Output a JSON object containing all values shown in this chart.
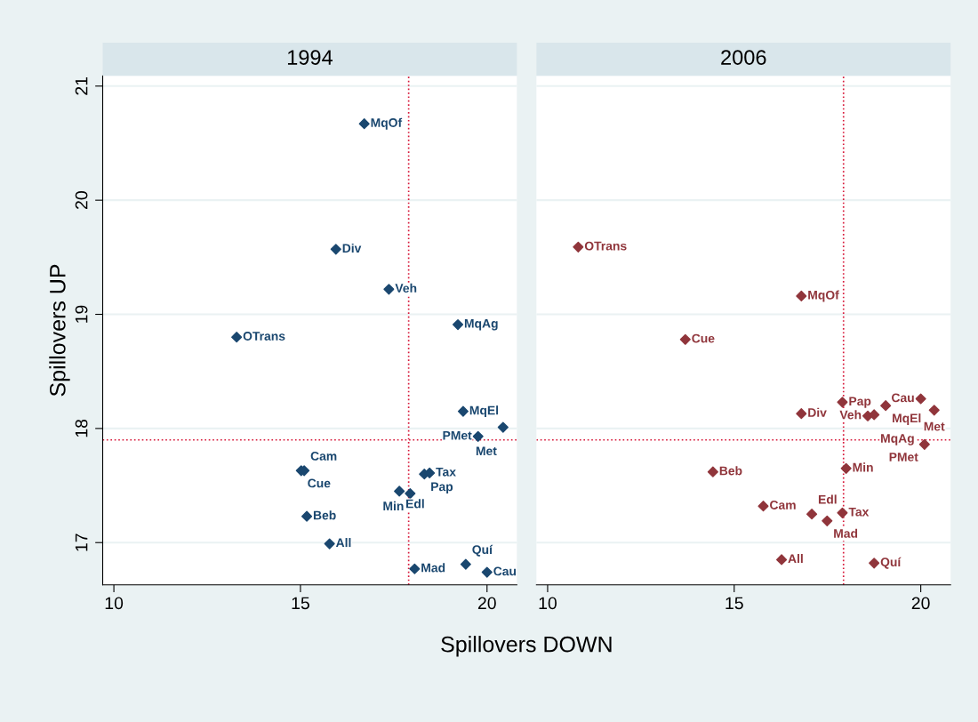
{
  "chart_data": [
    {
      "type": "scatter",
      "title": "1994",
      "xlabel": "Spillovers DOWN",
      "ylabel": "Spillovers UP",
      "xlim": [
        9.7,
        20.8
      ],
      "xticks": [
        10,
        15,
        20
      ],
      "ylim": [
        16.63,
        21.09
      ],
      "yticks": [
        17,
        18,
        19,
        20,
        21
      ],
      "grid": "y",
      "marker": "diamond",
      "series": [
        {
          "color": "#1a476f",
          "x": [
            16.71,
            15.95,
            17.37,
            13.29,
            19.22,
            19.36,
            20.43,
            19.76,
            15.02,
            15.1,
            18.32,
            18.46,
            17.65,
            17.94,
            15.17,
            15.78,
            18.06,
            19.43,
            20.0
          ],
          "values": [
            20.67,
            19.57,
            19.22,
            18.8,
            18.91,
            18.15,
            18.01,
            17.93,
            17.63,
            17.63,
            17.6,
            17.61,
            17.45,
            17.43,
            17.23,
            16.99,
            16.77,
            16.81,
            16.74
          ]
        }
      ],
      "annotations": [
        {
          "text": "MqOf",
          "x": 16.71,
          "y": 20.67
        },
        {
          "text": "Div",
          "x": 15.95,
          "y": 19.57
        },
        {
          "text": "Veh",
          "x": 17.37,
          "y": 19.22
        },
        {
          "text": "OTrans",
          "x": 13.29,
          "y": 18.8
        },
        {
          "text": "MqAg",
          "x": 19.22,
          "y": 18.91
        },
        {
          "text": "MqEl",
          "x": 19.36,
          "y": 18.15
        },
        {
          "text": "Met",
          "x": 20.43,
          "y": 18.01
        },
        {
          "text": "PMet",
          "x": 19.76,
          "y": 17.93
        },
        {
          "text": "Cue",
          "x": 15.02,
          "y": 17.63
        },
        {
          "text": "Cam",
          "x": 15.1,
          "y": 17.63
        },
        {
          "text": "Pap",
          "x": 18.32,
          "y": 17.6
        },
        {
          "text": "Tax",
          "x": 18.46,
          "y": 17.61
        },
        {
          "text": "Edl",
          "x": 17.65,
          "y": 17.45
        },
        {
          "text": "Min",
          "x": 17.94,
          "y": 17.43
        },
        {
          "text": "Beb",
          "x": 15.17,
          "y": 17.23
        },
        {
          "text": "All",
          "x": 15.78,
          "y": 16.99
        },
        {
          "text": "Mad",
          "x": 18.06,
          "y": 16.77
        },
        {
          "text": "Quí",
          "x": 19.43,
          "y": 16.81
        },
        {
          "text": "Cau",
          "x": 20.0,
          "y": 16.74
        }
      ],
      "ref_lines": [
        {
          "axis": "x",
          "value": 17.9,
          "color": "#d7193a",
          "line_style": "dotted"
        },
        {
          "axis": "y",
          "value": 17.9,
          "color": "#d7193a",
          "line_style": "dotted"
        }
      ]
    },
    {
      "type": "scatter",
      "title": "2006",
      "xlim": [
        9.7,
        20.8
      ],
      "xticks": [
        10,
        15,
        20
      ],
      "ylim": [
        16.63,
        21.09
      ],
      "yticks": [
        17,
        18,
        19,
        20,
        21
      ],
      "tick_labels": "x",
      "grid": "y",
      "marker": "diamond",
      "series": [
        {
          "color": "#90353b",
          "x": [
            10.82,
            16.8,
            13.69,
            17.9,
            16.8,
            19.06,
            20.0,
            20.36,
            18.58,
            18.75,
            20.1,
            18.0,
            14.43,
            15.78,
            17.08,
            17.9,
            17.49,
            16.27,
            18.75
          ],
          "values": [
            19.59,
            19.16,
            18.78,
            18.23,
            18.13,
            18.2,
            18.26,
            18.16,
            18.11,
            18.12,
            17.86,
            17.65,
            17.62,
            17.32,
            17.25,
            17.26,
            17.19,
            16.85,
            16.82
          ]
        }
      ],
      "annotations": [
        {
          "text": "OTrans",
          "x": 10.82,
          "y": 19.59
        },
        {
          "text": "MqOf",
          "x": 16.8,
          "y": 19.16
        },
        {
          "text": "Cue",
          "x": 13.69,
          "y": 18.78
        },
        {
          "text": "Pap",
          "x": 17.9,
          "y": 18.23
        },
        {
          "text": "Div",
          "x": 16.8,
          "y": 18.13
        },
        {
          "text": "MqEl",
          "x": 19.06,
          "y": 18.2
        },
        {
          "text": "Cau",
          "x": 20.0,
          "y": 18.26
        },
        {
          "text": "Met",
          "x": 20.36,
          "y": 18.16
        },
        {
          "text": "Veh",
          "x": 18.58,
          "y": 18.11
        },
        {
          "text": "MqAg",
          "x": 18.75,
          "y": 18.12
        },
        {
          "text": "PMet",
          "x": 20.1,
          "y": 17.86
        },
        {
          "text": "Min",
          "x": 18.0,
          "y": 17.65
        },
        {
          "text": "Beb",
          "x": 14.43,
          "y": 17.62
        },
        {
          "text": "Cam",
          "x": 15.78,
          "y": 17.32
        },
        {
          "text": "Edl",
          "x": 17.08,
          "y": 17.25
        },
        {
          "text": "Tax",
          "x": 17.9,
          "y": 17.26
        },
        {
          "text": "Mad",
          "x": 17.49,
          "y": 17.19
        },
        {
          "text": "All",
          "x": 16.27,
          "y": 16.85
        },
        {
          "text": "Quí",
          "x": 18.75,
          "y": 16.82
        }
      ],
      "ref_lines": [
        {
          "axis": "x",
          "value": 17.93,
          "color": "#d7193a",
          "line_style": "dotted"
        },
        {
          "axis": "y",
          "value": 17.9,
          "color": "#d7193a",
          "line_style": "dotted"
        }
      ]
    }
  ]
}
